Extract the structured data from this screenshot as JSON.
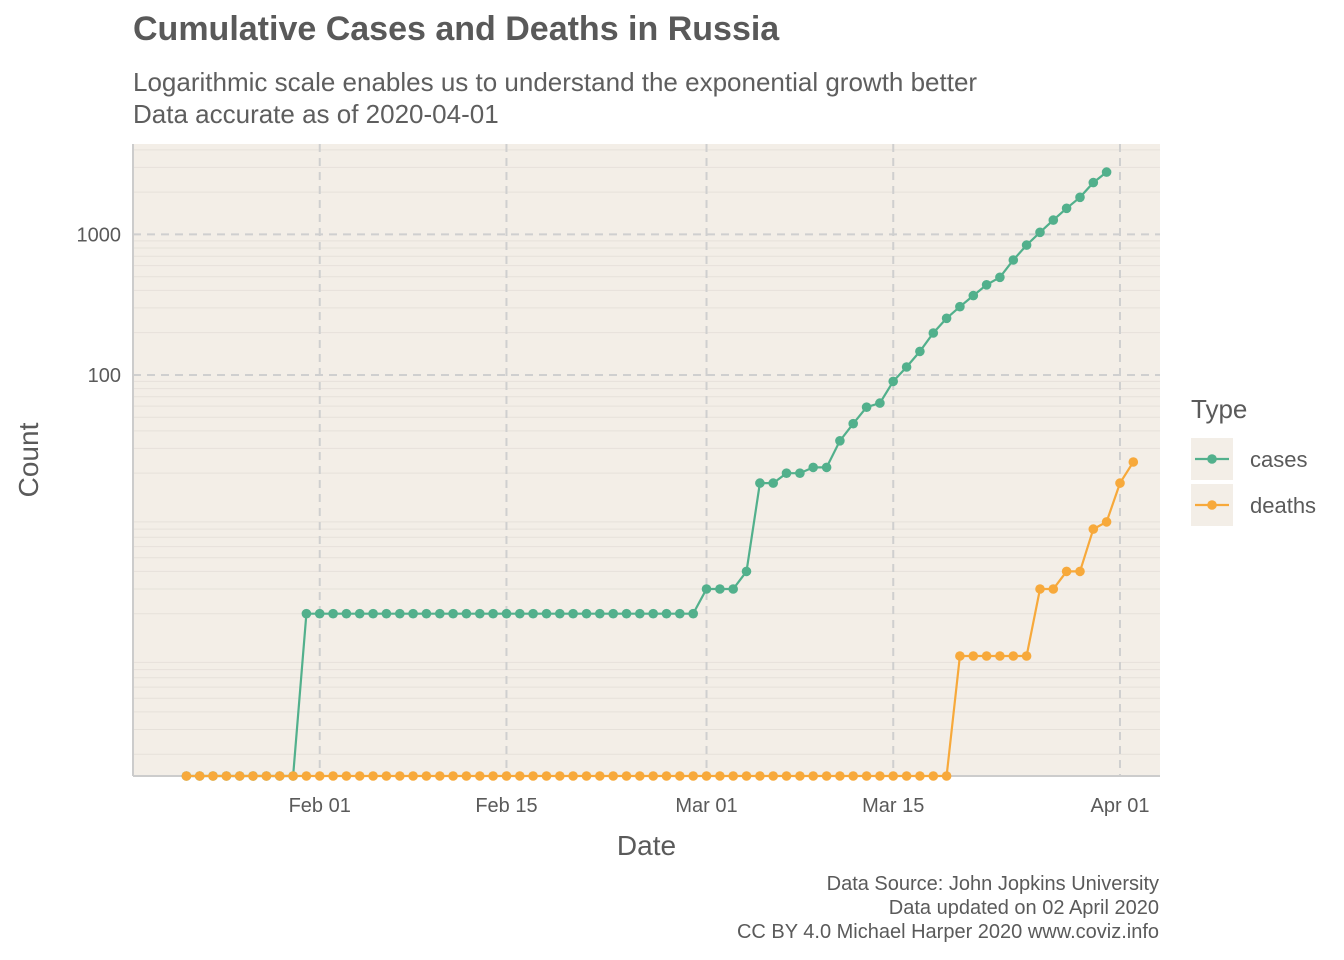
{
  "title": "Cumulative Cases and Deaths in Russia",
  "subtitle_lines": [
    "Logarithmic scale enables us to understand the exponential growth better",
    "Data accurate as of 2020-04-01"
  ],
  "caption_lines": [
    "Data Source: John Jopkins University",
    "Data updated on 02 April 2020",
    "CC BY 4.0 Michael Harper 2020 www.coviz.info"
  ],
  "colors": {
    "panel_bg": "#f3eee7",
    "grid_major": "#cfcfcf",
    "grid_minor": "#e6e1da",
    "axis": "#cccccc",
    "cases": "#52b08c",
    "deaths": "#f7a93b"
  },
  "chart_data": {
    "type": "line",
    "xlabel": "Date",
    "ylabel": "Count",
    "x_start": "2020-01-22",
    "x_ticks": [
      {
        "date": "2020-02-01",
        "label": "Feb 01"
      },
      {
        "date": "2020-02-15",
        "label": "Feb 15"
      },
      {
        "date": "2020-03-01",
        "label": "Mar 01"
      },
      {
        "date": "2020-03-15",
        "label": "Mar 15"
      },
      {
        "date": "2020-04-01",
        "label": "Apr 01"
      }
    ],
    "x_range": [
      "2020-01-18",
      "2020-04-04"
    ],
    "y_scale": "log",
    "y_ticks": [
      {
        "value": 100,
        "label": "100"
      },
      {
        "value": 1000,
        "label": "1000"
      }
    ],
    "y_range": [
      0.14,
      4400
    ],
    "grid": true,
    "legend": {
      "title": "Type",
      "position": "right"
    },
    "series": [
      {
        "name": "cases",
        "color": "#52b08c",
        "values": [
          0,
          0,
          0,
          0,
          0,
          0,
          0,
          0,
          0,
          2,
          2,
          2,
          2,
          2,
          2,
          2,
          2,
          2,
          2,
          2,
          2,
          2,
          2,
          2,
          2,
          2,
          2,
          2,
          2,
          2,
          2,
          2,
          2,
          2,
          2,
          2,
          2,
          2,
          2,
          3,
          3,
          3,
          4,
          17,
          17,
          20,
          20,
          22,
          22,
          34,
          45,
          59,
          63,
          90,
          114,
          147,
          199,
          253,
          306,
          367,
          438,
          495,
          658,
          840,
          1036,
          1264,
          1534,
          1836,
          2337,
          2777
        ]
      },
      {
        "name": "deaths",
        "color": "#f7a93b",
        "values": [
          0,
          0,
          0,
          0,
          0,
          0,
          0,
          0,
          0,
          0,
          0,
          0,
          0,
          0,
          0,
          0,
          0,
          0,
          0,
          0,
          0,
          0,
          0,
          0,
          0,
          0,
          0,
          0,
          0,
          0,
          0,
          0,
          0,
          0,
          0,
          0,
          0,
          0,
          0,
          0,
          0,
          0,
          0,
          0,
          0,
          0,
          0,
          0,
          0,
          0,
          0,
          0,
          0,
          0,
          0,
          0,
          0,
          0,
          1,
          1,
          1,
          1,
          1,
          1,
          3,
          3,
          4,
          4,
          8,
          9,
          17,
          24
        ]
      }
    ]
  }
}
